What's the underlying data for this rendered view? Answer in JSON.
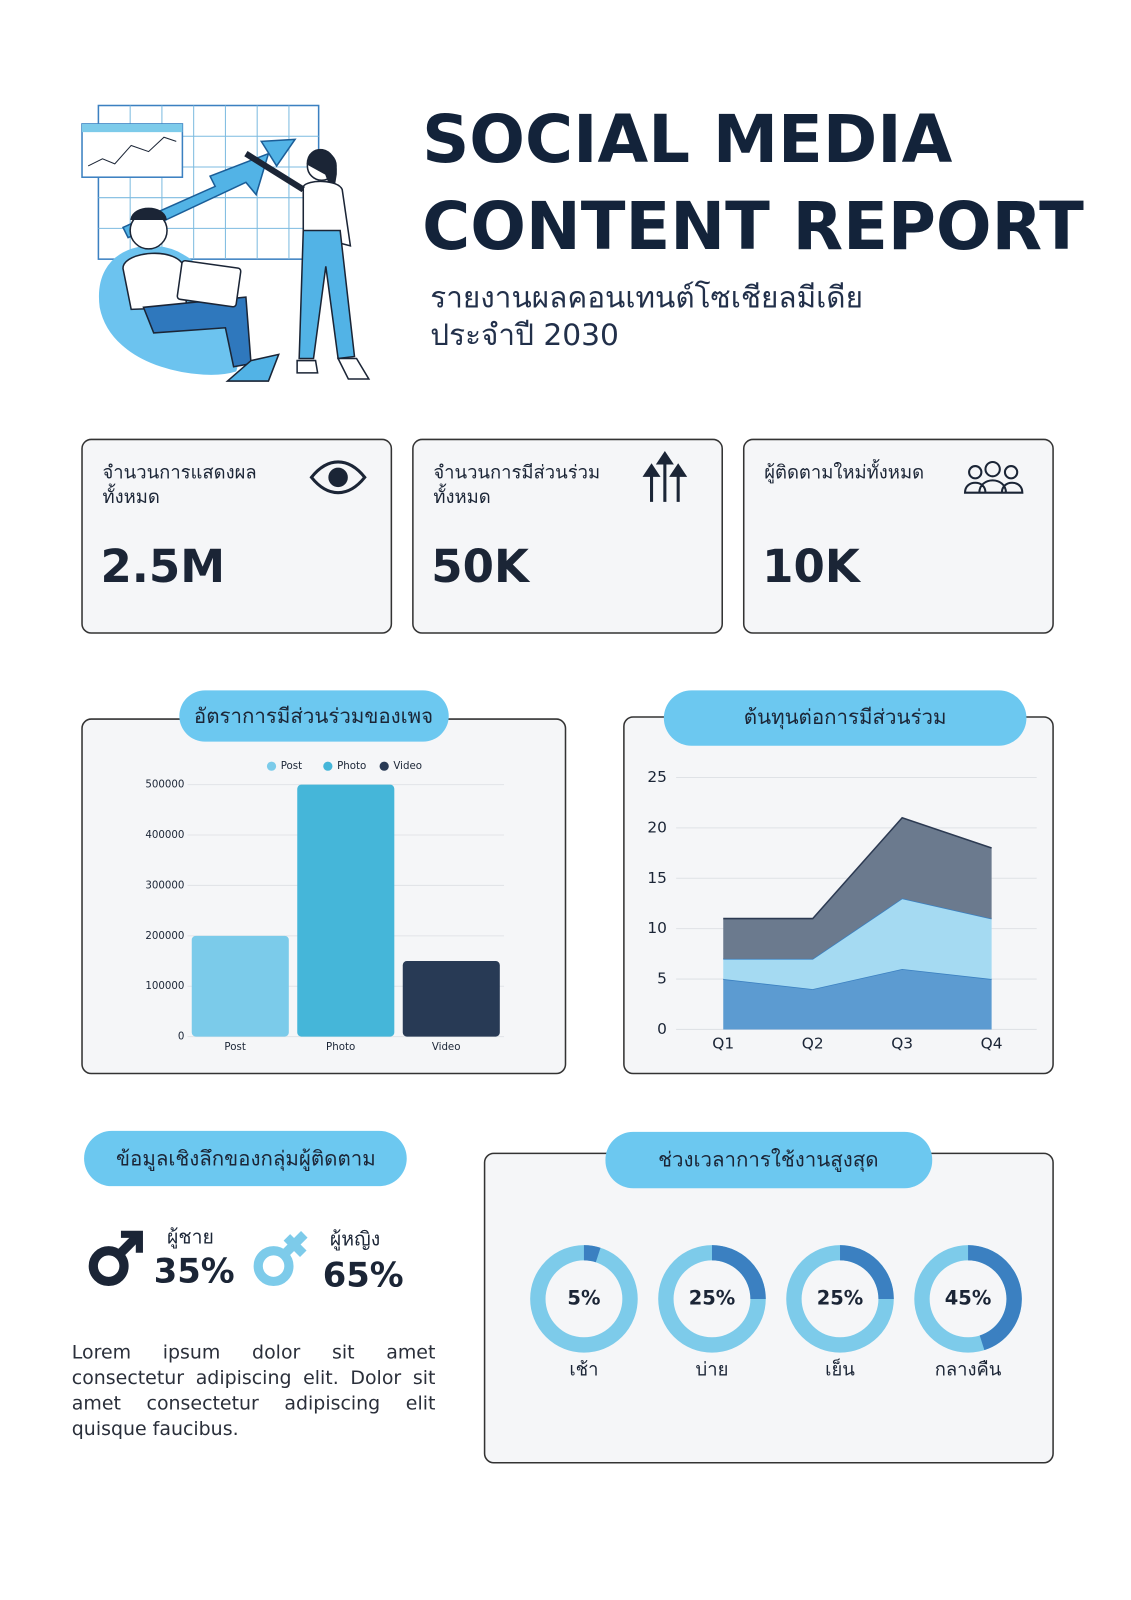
{
  "header": {
    "title_line1": "SOCIAL MEDIA",
    "title_line2": "CONTENT REPORT",
    "subtitle_line1": "รายงานผลคอนเทนต์โซเชียลมีเดีย",
    "subtitle_line2": "ประจำปี 2030"
  },
  "kpis": [
    {
      "label_lines": [
        "จำนวนการแสดงผล",
        "ทั้งหมด"
      ],
      "value": "2.5M"
    },
    {
      "label_lines": [
        "จำนวนการมีส่วนร่วม",
        "ทั้งหมด"
      ],
      "value": "50K"
    },
    {
      "label_lines": [
        "ผู้ติดตามใหม่ทั้งหมด"
      ],
      "value": "10K"
    }
  ],
  "engagement_chart": {
    "type": "bar",
    "title": "อัตราการมีส่วนร่วมของเพจ",
    "categories": [
      "Post",
      "Photo",
      "Video"
    ],
    "values": [
      200000,
      500000,
      150000
    ],
    "colors": [
      "#7bcbea",
      "#45b6d9",
      "#283a55"
    ],
    "ylim": [
      0,
      500000
    ],
    "yticks": [
      0,
      100000,
      200000,
      300000,
      400000,
      500000
    ],
    "grid": true,
    "legend": "top"
  },
  "cost_chart": {
    "type": "area",
    "title": "ต้นทุนต่อการมีส่วนร่วม",
    "categories": [
      "Q1",
      "Q2",
      "Q3",
      "Q4"
    ],
    "stacked": true,
    "series": [
      {
        "color": "#5c9bd1",
        "values": [
          5,
          4,
          6,
          5
        ]
      },
      {
        "color": "#a5daf2",
        "values": [
          2,
          3,
          7,
          6
        ]
      },
      {
        "color": "#6b7a8e",
        "values": [
          4,
          4,
          8,
          7
        ]
      }
    ],
    "ylim": [
      0,
      25
    ],
    "yticks": [
      0,
      5,
      10,
      15,
      20,
      25
    ],
    "grid": true
  },
  "audience": {
    "title": "ข้อมูลเชิงลึกของกลุ่มผู้ติดตาม",
    "male": {
      "label": "ผู้ชาย",
      "value": "35%"
    },
    "female": {
      "label": "ผู้หญิง",
      "value": "65%"
    },
    "body_text": "Lorem ipsum dolor sit amet consectetur adipiscing elit. Dolor sit amet consectetur adipiscing elit quisque faucibus."
  },
  "peak_usage": {
    "type": "donut",
    "title": "ช่วงเวลาการใช้งานสูงสุด",
    "categories": [
      "เช้า",
      "บ่าย",
      "เย็น",
      "กลางคืน"
    ],
    "values": [
      5,
      25,
      25,
      45
    ],
    "value_labels": [
      "5%",
      "25%",
      "25%",
      "45%"
    ],
    "colors": [
      "#3b80c1",
      "#7dcbea"
    ]
  }
}
